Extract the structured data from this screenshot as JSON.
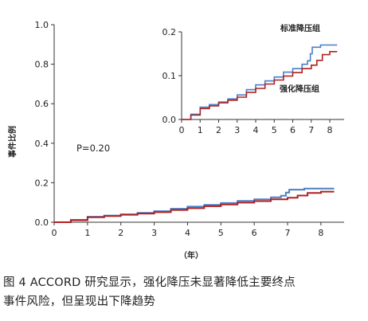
{
  "chart_data": [
    {
      "type": "line",
      "panel": "main",
      "ylabel": "事件比例",
      "xlabel": "（年）",
      "xlim": [
        0,
        8.6
      ],
      "ylim": [
        0,
        1.0
      ],
      "x_ticks": [
        "0",
        "1",
        "2",
        "3",
        "4",
        "5",
        "6",
        "7",
        "8"
      ],
      "y_ticks": [
        "0.0",
        "0.2",
        "0.4",
        "0.6",
        "0.8",
        "1.0"
      ],
      "annotation": "P=0.20",
      "series": [
        {
          "color": "#4a7fc8",
          "x": [
            0,
            0.5,
            1.0,
            1.5,
            2.0,
            2.5,
            3.0,
            3.5,
            4.0,
            4.5,
            5.0,
            5.5,
            6.0,
            6.5,
            6.8,
            6.95,
            7.05,
            7.5,
            8.0,
            8.4
          ],
          "values": [
            0,
            0.012,
            0.028,
            0.034,
            0.04,
            0.047,
            0.056,
            0.068,
            0.079,
            0.088,
            0.097,
            0.108,
            0.116,
            0.126,
            0.134,
            0.15,
            0.165,
            0.17,
            0.17,
            0.17
          ]
        },
        {
          "color": "#b02020",
          "x": [
            0,
            0.5,
            1.0,
            1.5,
            2.0,
            2.5,
            3.0,
            3.5,
            4.0,
            4.5,
            5.0,
            5.5,
            6.0,
            6.5,
            7.0,
            7.3,
            7.6,
            8.0,
            8.4
          ],
          "values": [
            0,
            0.01,
            0.025,
            0.031,
            0.038,
            0.044,
            0.051,
            0.062,
            0.071,
            0.081,
            0.09,
            0.099,
            0.107,
            0.116,
            0.124,
            0.135,
            0.148,
            0.155,
            0.155
          ]
        }
      ]
    },
    {
      "type": "line",
      "panel": "inset",
      "xlim": [
        0,
        8.6
      ],
      "ylim": [
        0,
        0.2
      ],
      "x_ticks": [
        "0",
        "1",
        "2",
        "3",
        "4",
        "5",
        "6",
        "7",
        "8"
      ],
      "y_ticks": [
        "0.0",
        "0.1",
        "0.2"
      ],
      "labels": [
        "标准降压组",
        "强化降压组"
      ],
      "series": [
        {
          "name": "标准降压组",
          "color": "#4a7fc8",
          "x": [
            0,
            0.5,
            1.0,
            1.5,
            2.0,
            2.5,
            3.0,
            3.5,
            4.0,
            4.5,
            5.0,
            5.5,
            6.0,
            6.5,
            6.8,
            6.95,
            7.05,
            7.5,
            8.0,
            8.4
          ],
          "values": [
            0,
            0.012,
            0.028,
            0.034,
            0.04,
            0.047,
            0.056,
            0.068,
            0.079,
            0.088,
            0.097,
            0.108,
            0.116,
            0.126,
            0.134,
            0.15,
            0.165,
            0.17,
            0.17,
            0.17
          ]
        },
        {
          "name": "强化降压组",
          "color": "#b02020",
          "x": [
            0,
            0.5,
            1.0,
            1.5,
            2.0,
            2.5,
            3.0,
            3.5,
            4.0,
            4.5,
            5.0,
            5.5,
            6.0,
            6.5,
            7.0,
            7.3,
            7.6,
            8.0,
            8.4
          ],
          "values": [
            0,
            0.01,
            0.025,
            0.031,
            0.038,
            0.044,
            0.051,
            0.062,
            0.071,
            0.081,
            0.09,
            0.099,
            0.107,
            0.116,
            0.124,
            0.135,
            0.148,
            0.155,
            0.155
          ]
        }
      ]
    }
  ],
  "caption": {
    "line1": "图 4  ACCORD 研究显示，强化降压未显著降低主要终点",
    "line2": "事件风险，但呈现出下降趋势"
  }
}
